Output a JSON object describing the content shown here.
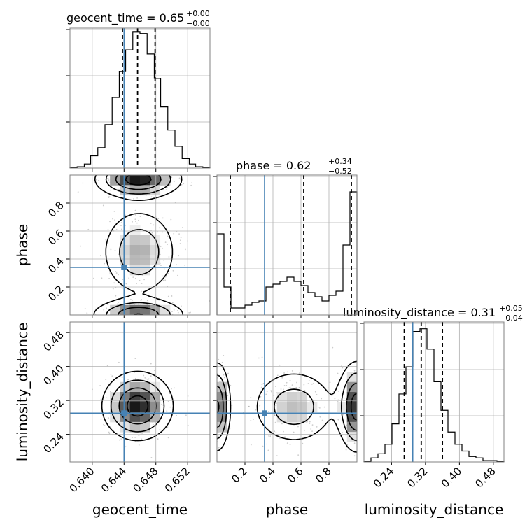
{
  "chart_data": {
    "type": "corner",
    "parameters": [
      "geocent_time",
      "phase",
      "luminosity_distance"
    ],
    "truth": {
      "geocent_time": 0.644,
      "phase": 0.34,
      "luminosity_distance": 0.29
    },
    "colors": {
      "truth": "#4682b4",
      "hist": "#000000",
      "grid": "#b0b0b0",
      "quantile": "#000000"
    },
    "titles": [
      {
        "param": "geocent_time",
        "text": "geocent_time = 0.65",
        "sup": "+0.00",
        "sub": "−0.00"
      },
      {
        "param": "phase",
        "text": "phase = 0.62",
        "sup": "+0.34",
        "sub": "−0.52"
      },
      {
        "param": "luminosity_distance",
        "text": "luminosity_distance = 0.31",
        "sup": "+0.05",
        "sub": "−0.04"
      }
    ],
    "axes": {
      "geocent_time": {
        "label": "geocent_time",
        "range": [
          0.6372,
          0.6548
        ],
        "ticks": [
          0.64,
          0.644,
          0.648,
          0.652
        ],
        "tick_labels": [
          "0.640",
          "0.644",
          "0.648",
          "0.652"
        ]
      },
      "phase": {
        "label": "phase",
        "range": [
          0.0,
          1.0
        ],
        "ticks": [
          0.2,
          0.4,
          0.6,
          0.8
        ],
        "tick_labels": [
          "0.2",
          "0.4",
          "0.6",
          "0.8"
        ]
      },
      "luminosity_distance": {
        "label": "luminosity_distance",
        "range": [
          0.175,
          0.505
        ],
        "ticks": [
          0.24,
          0.32,
          0.4,
          0.48
        ],
        "tick_labels": [
          "0.24",
          "0.32",
          "0.40",
          "0.48"
        ]
      }
    },
    "histograms": [
      {
        "param": "geocent_time",
        "bin_edges": [
          0.6372,
          0.6381,
          0.639,
          0.6398,
          0.6407,
          0.6416,
          0.6425,
          0.6434,
          0.6442,
          0.6451,
          0.646,
          0.6469,
          0.6478,
          0.6486,
          0.6495,
          0.6504,
          0.6513,
          0.6522,
          0.653,
          0.6539,
          0.6548
        ],
        "counts": [
          0.005,
          0.01,
          0.03,
          0.09,
          0.15,
          0.32,
          0.52,
          0.71,
          0.87,
          1.0,
          0.99,
          0.84,
          0.66,
          0.45,
          0.28,
          0.16,
          0.07,
          0.03,
          0.01,
          0.005
        ],
        "quantiles": [
          0.6438,
          0.6457,
          0.6479
        ],
        "ylim": [
          0,
          1.03
        ]
      },
      {
        "param": "phase",
        "bin_edges": [
          0.0,
          0.05,
          0.1,
          0.15,
          0.2,
          0.25,
          0.3,
          0.35,
          0.4,
          0.45,
          0.5,
          0.55,
          0.6,
          0.65,
          0.7,
          0.75,
          0.8,
          0.85,
          0.9,
          0.95,
          1.0
        ],
        "counts": [
          0.58,
          0.2,
          0.05,
          0.05,
          0.07,
          0.09,
          0.1,
          0.2,
          0.22,
          0.24,
          0.27,
          0.24,
          0.21,
          0.16,
          0.13,
          0.1,
          0.14,
          0.17,
          0.5,
          0.88
        ],
        "quantiles": [
          0.095,
          0.62,
          0.96
        ],
        "ylim": [
          0,
          1.0
        ]
      },
      {
        "param": "luminosity_distance",
        "bin_edges": [
          0.175,
          0.1915,
          0.208,
          0.2245,
          0.241,
          0.2575,
          0.274,
          0.2905,
          0.307,
          0.3235,
          0.34,
          0.3565,
          0.373,
          0.3895,
          0.406,
          0.4225,
          0.439,
          0.4555,
          0.472,
          0.4885,
          0.505
        ],
        "counts": [
          0.005,
          0.03,
          0.06,
          0.13,
          0.28,
          0.5,
          0.7,
          0.96,
          0.98,
          0.83,
          0.59,
          0.38,
          0.22,
          0.13,
          0.08,
          0.04,
          0.03,
          0.01,
          0.01,
          0.005
        ],
        "quantiles": [
          0.27,
          0.31,
          0.36
        ],
        "ylim": [
          0,
          1.03
        ]
      }
    ],
    "density_2d": [
      {
        "x": "geocent_time",
        "y": "phase",
        "modes": [
          {
            "center": [
              0.6458,
              0.97
            ],
            "spread": [
              0.0028,
              0.07
            ],
            "weight": 1.0
          },
          {
            "center": [
              0.6459,
              0.45
            ],
            "spread": [
              0.0026,
              0.17
            ],
            "weight": 0.55
          },
          {
            "center": [
              0.6458,
              0.0
            ],
            "spread": [
              0.003,
              0.06
            ],
            "weight": 0.85
          }
        ]
      },
      {
        "x": "geocent_time",
        "y": "luminosity_distance",
        "modes": [
          {
            "center": [
              0.6457,
              0.307
            ],
            "spread": [
              0.0023,
              0.042
            ],
            "weight": 1.0
          }
        ]
      },
      {
        "x": "phase",
        "y": "luminosity_distance",
        "modes": [
          {
            "center": [
              0.0,
              0.305
            ],
            "spread": [
              0.05,
              0.055
            ],
            "weight": 0.9
          },
          {
            "center": [
              0.55,
              0.305
            ],
            "spread": [
              0.17,
              0.05
            ],
            "weight": 0.5
          },
          {
            "center": [
              1.0,
              0.305
            ],
            "spread": [
              0.07,
              0.055
            ],
            "weight": 1.0
          }
        ]
      }
    ],
    "contour_levels": [
      0.15,
      0.35,
      0.6,
      0.85
    ],
    "grid": true
  }
}
